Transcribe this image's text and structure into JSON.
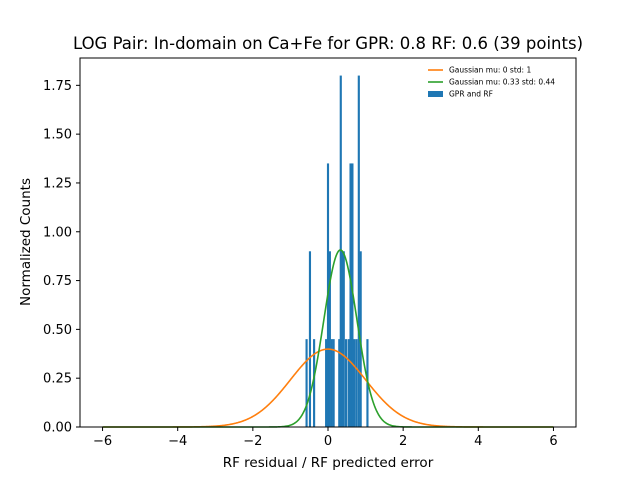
{
  "chart_data": {
    "type": "bar",
    "title": "LOG Pair: In-domain on Ca+Fe for GPR: 0.8 RF: 0.6 (39 points)",
    "xlabel": "RF residual / RF predicted error",
    "ylabel": "Normalized Counts",
    "xlim": [
      -6.6,
      6.6
    ],
    "ylim": [
      0,
      1.89
    ],
    "xticks": [
      -6,
      -4,
      -2,
      0,
      2,
      4,
      6
    ],
    "xtick_labels": [
      "−6",
      "−4",
      "−2",
      "0",
      "2",
      "4",
      "6"
    ],
    "yticks": [
      0,
      0.25,
      0.5,
      0.75,
      1.0,
      1.25,
      1.5,
      1.75
    ],
    "ytick_labels": [
      "0.00",
      "0.25",
      "0.50",
      "0.75",
      "1.00",
      "1.25",
      "1.50",
      "1.75"
    ],
    "grid": false,
    "legend_position": "top-right",
    "histogram": {
      "name": "GPR and RF",
      "color": "#1f77b4",
      "bin_width": 0.057,
      "bins": [
        {
          "x": -0.57,
          "y": 0.45
        },
        {
          "x": -0.48,
          "y": 0.9
        },
        {
          "x": -0.37,
          "y": 0.45
        },
        {
          "x": -0.05,
          "y": 0.45
        },
        {
          "x": 0.0,
          "y": 1.35
        },
        {
          "x": 0.05,
          "y": 0.9
        },
        {
          "x": 0.1,
          "y": 0.45
        },
        {
          "x": 0.15,
          "y": 0.45
        },
        {
          "x": 0.3,
          "y": 0.45
        },
        {
          "x": 0.34,
          "y": 1.8
        },
        {
          "x": 0.38,
          "y": 0.9
        },
        {
          "x": 0.42,
          "y": 0.9
        },
        {
          "x": 0.48,
          "y": 0.45
        },
        {
          "x": 0.55,
          "y": 0.45
        },
        {
          "x": 0.6,
          "y": 1.35
        },
        {
          "x": 0.65,
          "y": 1.35
        },
        {
          "x": 0.7,
          "y": 0.45
        },
        {
          "x": 0.76,
          "y": 0.45
        },
        {
          "x": 0.82,
          "y": 1.8
        },
        {
          "x": 0.87,
          "y": 0.9
        },
        {
          "x": 1.05,
          "y": 0.45
        }
      ]
    },
    "series": [
      {
        "name": "Gaussian mu: 0 std: 1",
        "type": "line",
        "mu": 0,
        "std": 1,
        "color": "#ff7f0e",
        "x_range": [
          -6,
          6
        ]
      },
      {
        "name": "Gaussian mu: 0.33 std: 0.44",
        "type": "line",
        "mu": 0.33,
        "std": 0.44,
        "color": "#2ca02c",
        "x_range": [
          -6,
          6
        ]
      }
    ],
    "legend": [
      {
        "label": "Gaussian mu: 0 std: 1",
        "kind": "line",
        "color": "#ff7f0e"
      },
      {
        "label": "Gaussian mu: 0.33 std: 0.44",
        "kind": "line",
        "color": "#2ca02c"
      },
      {
        "label": "GPR and RF",
        "kind": "patch",
        "color": "#1f77b4"
      }
    ]
  }
}
